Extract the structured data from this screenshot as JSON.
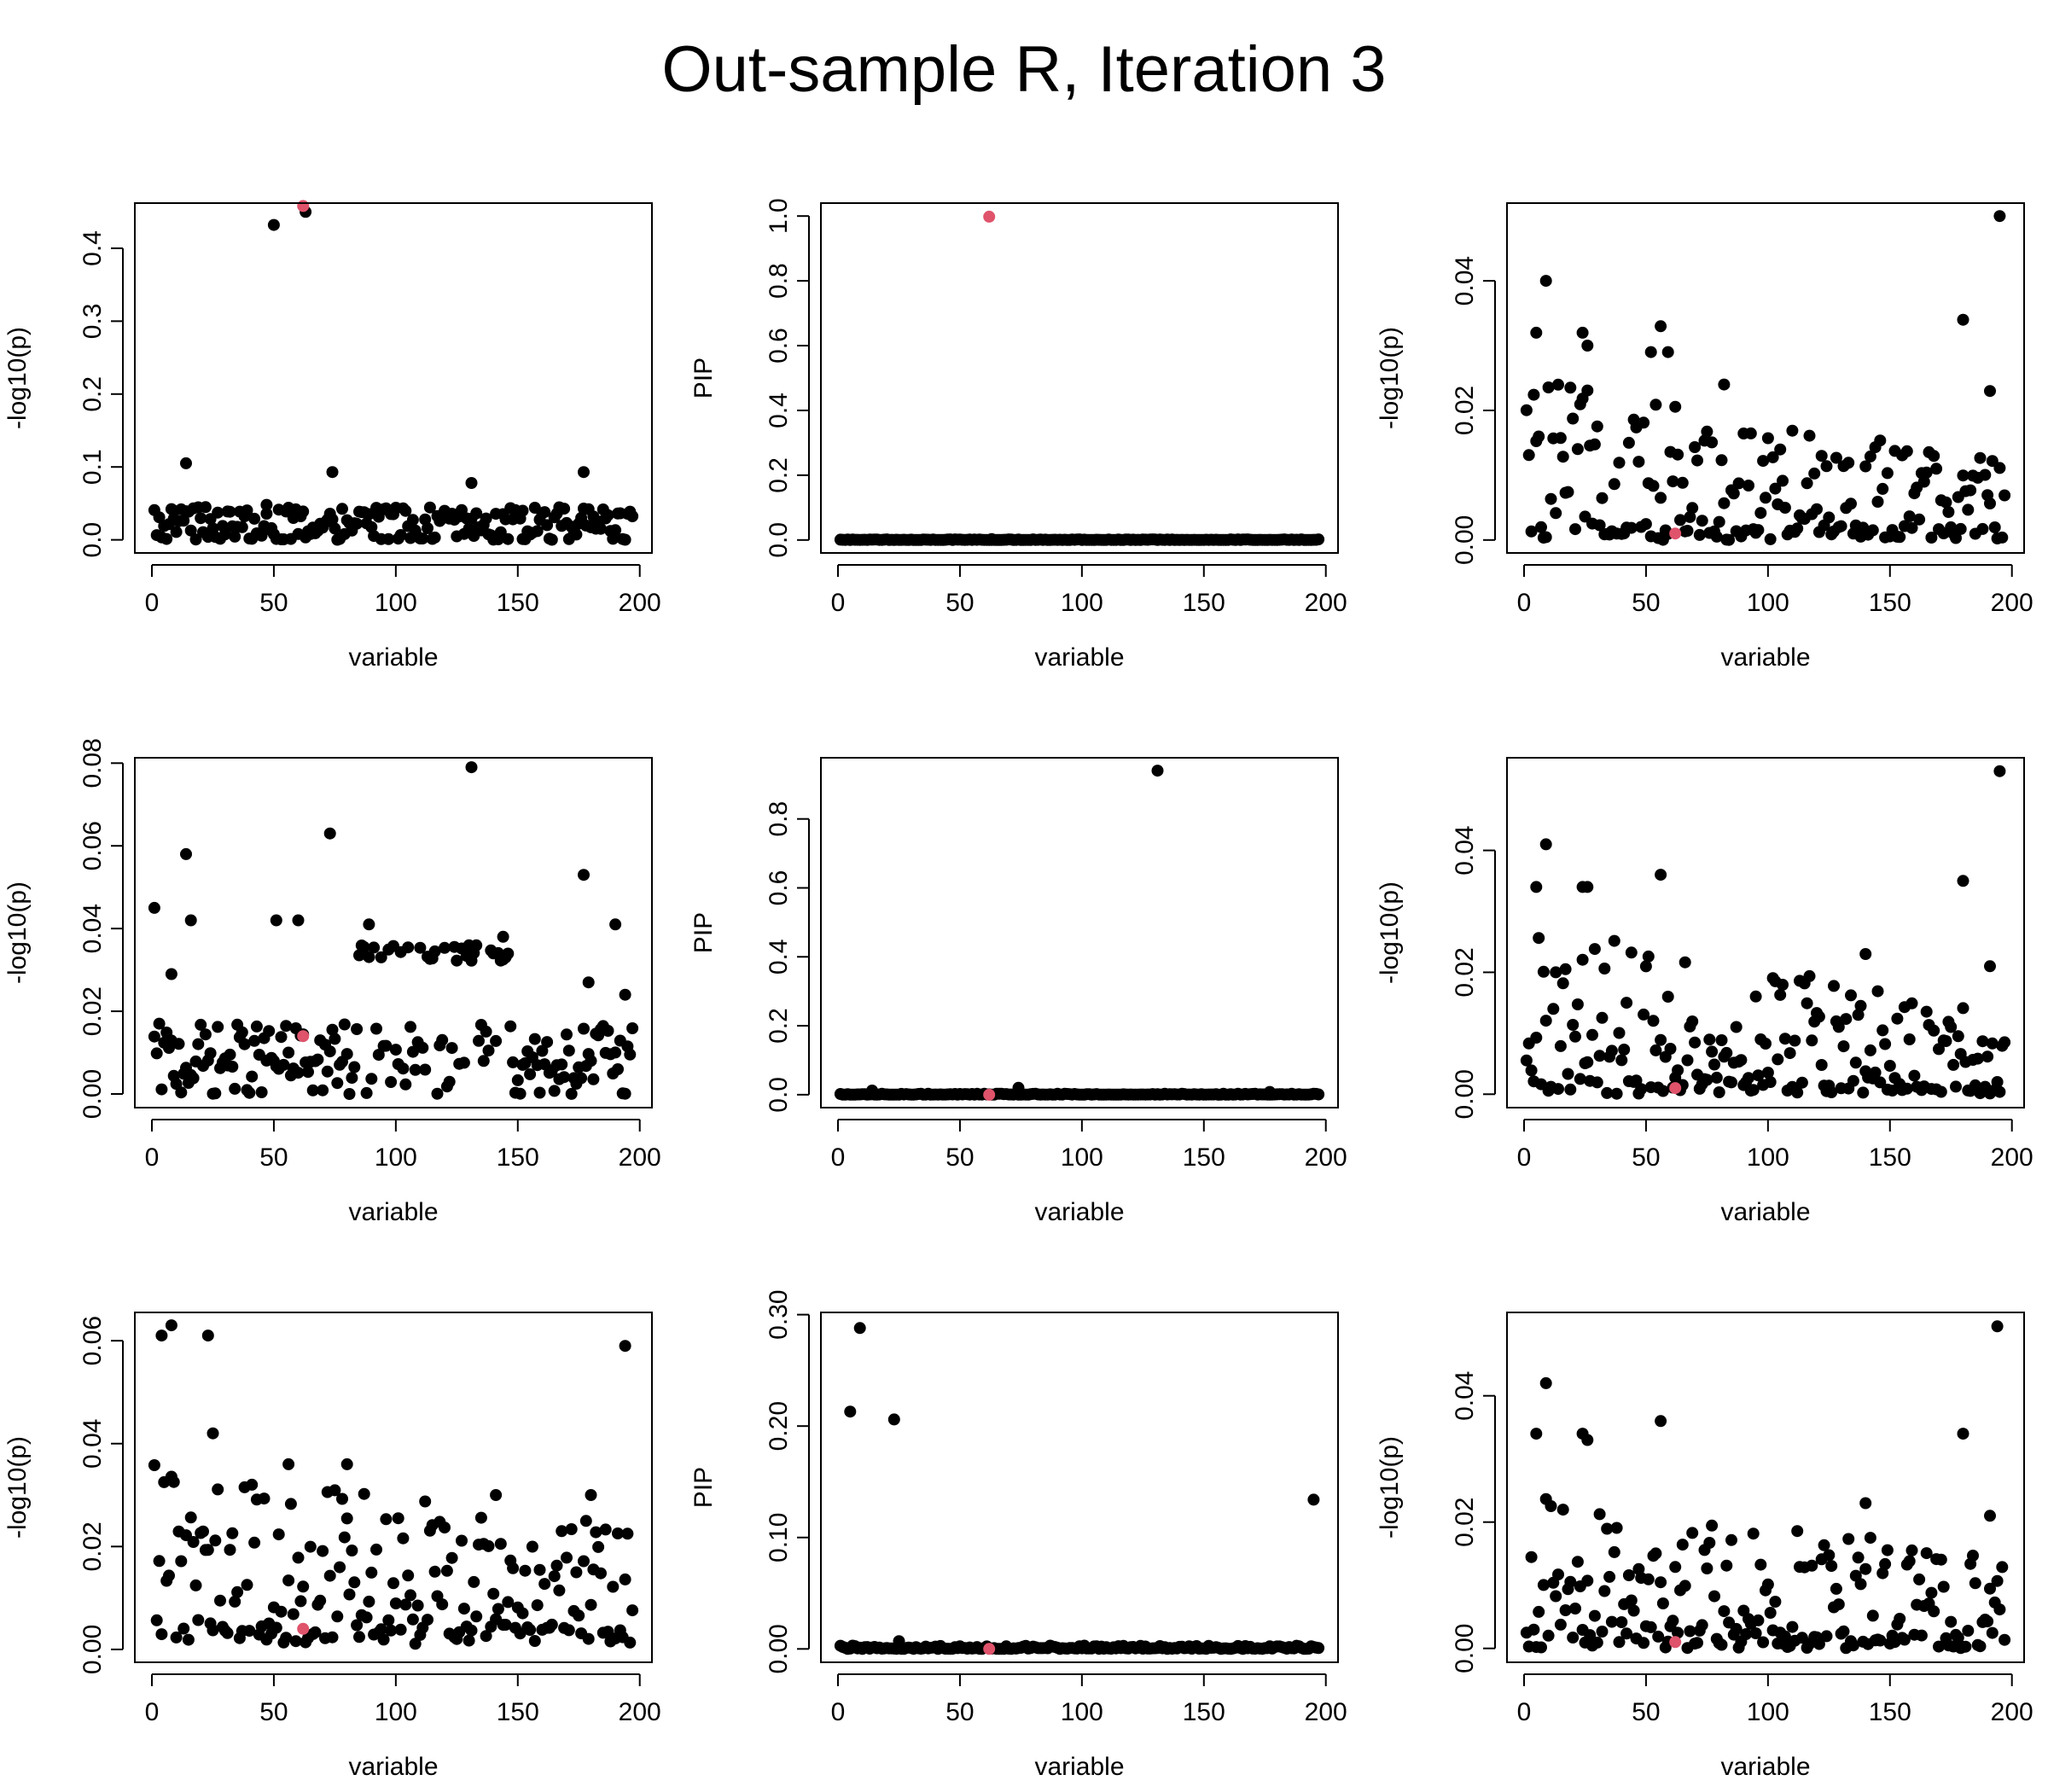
{
  "title": "Out-sample R, Iteration 3",
  "colors": {
    "point": "#000000",
    "highlight": "#DF536B"
  },
  "chart_data": [
    {
      "type": "scatter",
      "xlabel": "variable",
      "ylabel": "-log10(p)",
      "xlim": [
        -7,
        205
      ],
      "ylim": [
        -0.018,
        0.462
      ],
      "xticks": [
        0,
        50,
        100,
        150,
        200
      ],
      "yticks": [
        0.0,
        0.1,
        0.2,
        0.3,
        0.4
      ],
      "yticklabels": [
        "0.0",
        "0.1",
        "0.2",
        "0.3",
        "0.4"
      ],
      "baseline": 0.012,
      "baseline_spread": 0.018,
      "scatter_lo": 0.028,
      "scatter_hi": 0.045,
      "scatter_frac": 0.35,
      "points": [
        [
          50,
          0.432
        ],
        [
          63,
          0.45
        ],
        [
          14,
          0.105
        ],
        [
          74,
          0.093
        ],
        [
          131,
          0.078
        ],
        [
          177,
          0.093
        ],
        [
          47,
          0.048
        ],
        [
          9,
          0.04
        ],
        [
          152,
          0.04
        ]
      ],
      "highlight": [
        62,
        0.458
      ]
    },
    {
      "type": "scatter",
      "xlabel": "variable",
      "ylabel": "PIP",
      "xlim": [
        -7,
        205
      ],
      "ylim": [
        -0.04,
        1.04
      ],
      "xticks": [
        0,
        50,
        100,
        150,
        200
      ],
      "yticks": [
        0.0,
        0.2,
        0.4,
        0.6,
        0.8,
        1.0
      ],
      "yticklabels": [
        "0.0",
        "0.2",
        "0.4",
        "0.6",
        "0.8",
        "1.0"
      ],
      "baseline": 0.0,
      "baseline_spread": 0.002,
      "points": [
        [
          63,
          0.003
        ]
      ],
      "highlight": [
        62,
        0.998
      ]
    },
    {
      "type": "scatter",
      "xlabel": "variable",
      "ylabel": "-log10(p)",
      "xlim": [
        -7,
        205
      ],
      "ylim": [
        -0.002,
        0.052
      ],
      "xticks": [
        0,
        50,
        100,
        150,
        200
      ],
      "yticks": [
        0.0,
        0.02,
        0.04
      ],
      "yticklabels": [
        "0.00",
        "0.02",
        "0.04"
      ],
      "wide_lo": 0.0,
      "wide_hi": 0.025,
      "wide_decay_to": 0.012,
      "points": [
        [
          9,
          0.04
        ],
        [
          5,
          0.032
        ],
        [
          24,
          0.032
        ],
        [
          26,
          0.03
        ],
        [
          56,
          0.033
        ],
        [
          59,
          0.029
        ],
        [
          52,
          0.029
        ],
        [
          180,
          0.034
        ],
        [
          195,
          0.05
        ],
        [
          191,
          0.023
        ],
        [
          82,
          0.024
        ]
      ],
      "highlight": [
        62,
        0.001
      ]
    },
    {
      "type": "scatter",
      "xlabel": "variable",
      "ylabel": "-log10(p)",
      "xlim": [
        -7,
        205
      ],
      "ylim": [
        -0.0033,
        0.0813
      ],
      "xticks": [
        0,
        50,
        100,
        150,
        200
      ],
      "yticks": [
        0.0,
        0.02,
        0.04,
        0.06,
        0.08
      ],
      "yticklabels": [
        "0.00",
        "0.02",
        "0.04",
        "0.06",
        "0.08"
      ],
      "baseline": 0.008,
      "baseline_spread": 0.009,
      "cluster": {
        "x0": 82,
        "x1": 146,
        "lo": 0.032,
        "hi": 0.036,
        "n": 28
      },
      "points": [
        [
          1,
          0.045
        ],
        [
          14,
          0.058
        ],
        [
          16,
          0.042
        ],
        [
          8,
          0.029
        ],
        [
          51,
          0.042
        ],
        [
          60,
          0.042
        ],
        [
          73,
          0.063
        ],
        [
          131,
          0.079
        ],
        [
          177,
          0.053
        ],
        [
          179,
          0.027
        ],
        [
          190,
          0.041
        ],
        [
          194,
          0.024
        ],
        [
          89,
          0.041
        ],
        [
          144,
          0.038
        ]
      ],
      "highlight": [
        62,
        0.014
      ]
    },
    {
      "type": "scatter",
      "xlabel": "variable",
      "ylabel": "PIP",
      "xlim": [
        -7,
        205
      ],
      "ylim": [
        -0.0375,
        0.9775
      ],
      "xticks": [
        0,
        50,
        100,
        150,
        200
      ],
      "yticks": [
        0.0,
        0.2,
        0.4,
        0.6,
        0.8
      ],
      "yticklabels": [
        "0.0",
        "0.2",
        "0.4",
        "0.6",
        "0.8"
      ],
      "baseline": 0.0,
      "baseline_spread": 0.003,
      "points": [
        [
          131,
          0.94
        ],
        [
          74,
          0.02
        ],
        [
          14,
          0.012
        ],
        [
          177,
          0.008
        ]
      ],
      "highlight": [
        62,
        0.0
      ]
    },
    {
      "type": "scatter",
      "xlabel": "variable",
      "ylabel": "-log10(p)",
      "xlim": [
        -7,
        205
      ],
      "ylim": [
        -0.0022,
        0.0552
      ],
      "xticks": [
        0,
        50,
        100,
        150,
        200
      ],
      "yticks": [
        0.0,
        0.02,
        0.04
      ],
      "yticklabels": [
        "0.00",
        "0.02",
        "0.04"
      ],
      "wide_lo": 0.0,
      "wide_hi": 0.028,
      "wide_decay_to": 0.014,
      "points": [
        [
          9,
          0.041
        ],
        [
          5,
          0.034
        ],
        [
          24,
          0.034
        ],
        [
          26,
          0.034
        ],
        [
          56,
          0.036
        ],
        [
          180,
          0.035
        ],
        [
          195,
          0.053
        ],
        [
          191,
          0.021
        ],
        [
          140,
          0.023
        ]
      ],
      "highlight": [
        62,
        0.001
      ]
    },
    {
      "type": "scatter",
      "xlabel": "variable",
      "ylabel": "-log10(p)",
      "xlim": [
        -7,
        205
      ],
      "ylim": [
        -0.0025,
        0.0655
      ],
      "xticks": [
        0,
        50,
        100,
        150,
        200
      ],
      "yticks": [
        0.0,
        0.02,
        0.04,
        0.06
      ],
      "yticklabels": [
        "0.00",
        "0.02",
        "0.04",
        "0.06"
      ],
      "wide_lo": 0.001,
      "wide_hi": 0.036,
      "wide_decay_to": 0.024,
      "points": [
        [
          4,
          0.061
        ],
        [
          8,
          0.063
        ],
        [
          23,
          0.061
        ],
        [
          25,
          0.042
        ],
        [
          194,
          0.059
        ],
        [
          141,
          0.03
        ],
        [
          180,
          0.03
        ],
        [
          80,
          0.036
        ],
        [
          56,
          0.036
        ]
      ],
      "highlight": [
        62,
        0.004
      ]
    },
    {
      "type": "scatter",
      "xlabel": "variable",
      "ylabel": "PIP",
      "xlim": [
        -7,
        205
      ],
      "ylim": [
        -0.012,
        0.302
      ],
      "xticks": [
        0,
        50,
        100,
        150,
        200
      ],
      "yticks": [
        0.0,
        0.1,
        0.2,
        0.3
      ],
      "yticklabels": [
        "0.00",
        "0.10",
        "0.20",
        "0.30"
      ],
      "baseline": 0.0,
      "baseline_spread": 0.003,
      "points": [
        [
          5,
          0.213
        ],
        [
          9,
          0.288
        ],
        [
          23,
          0.206
        ],
        [
          195,
          0.134
        ],
        [
          25,
          0.007
        ]
      ],
      "highlight": [
        62,
        0.0
      ]
    },
    {
      "type": "scatter",
      "xlabel": "variable",
      "ylabel": "-log10(p)",
      "xlim": [
        -7,
        205
      ],
      "ylim": [
        -0.0022,
        0.0532
      ],
      "xticks": [
        0,
        50,
        100,
        150,
        200
      ],
      "yticks": [
        0.0,
        0.02,
        0.04
      ],
      "yticklabels": [
        "0.00",
        "0.02",
        "0.04"
      ],
      "wide_lo": 0.0,
      "wide_hi": 0.028,
      "wide_decay_to": 0.014,
      "points": [
        [
          9,
          0.042
        ],
        [
          5,
          0.034
        ],
        [
          24,
          0.034
        ],
        [
          26,
          0.033
        ],
        [
          56,
          0.036
        ],
        [
          180,
          0.034
        ],
        [
          194,
          0.051
        ],
        [
          191,
          0.021
        ],
        [
          140,
          0.023
        ]
      ],
      "highlight": [
        62,
        0.001
      ]
    }
  ]
}
